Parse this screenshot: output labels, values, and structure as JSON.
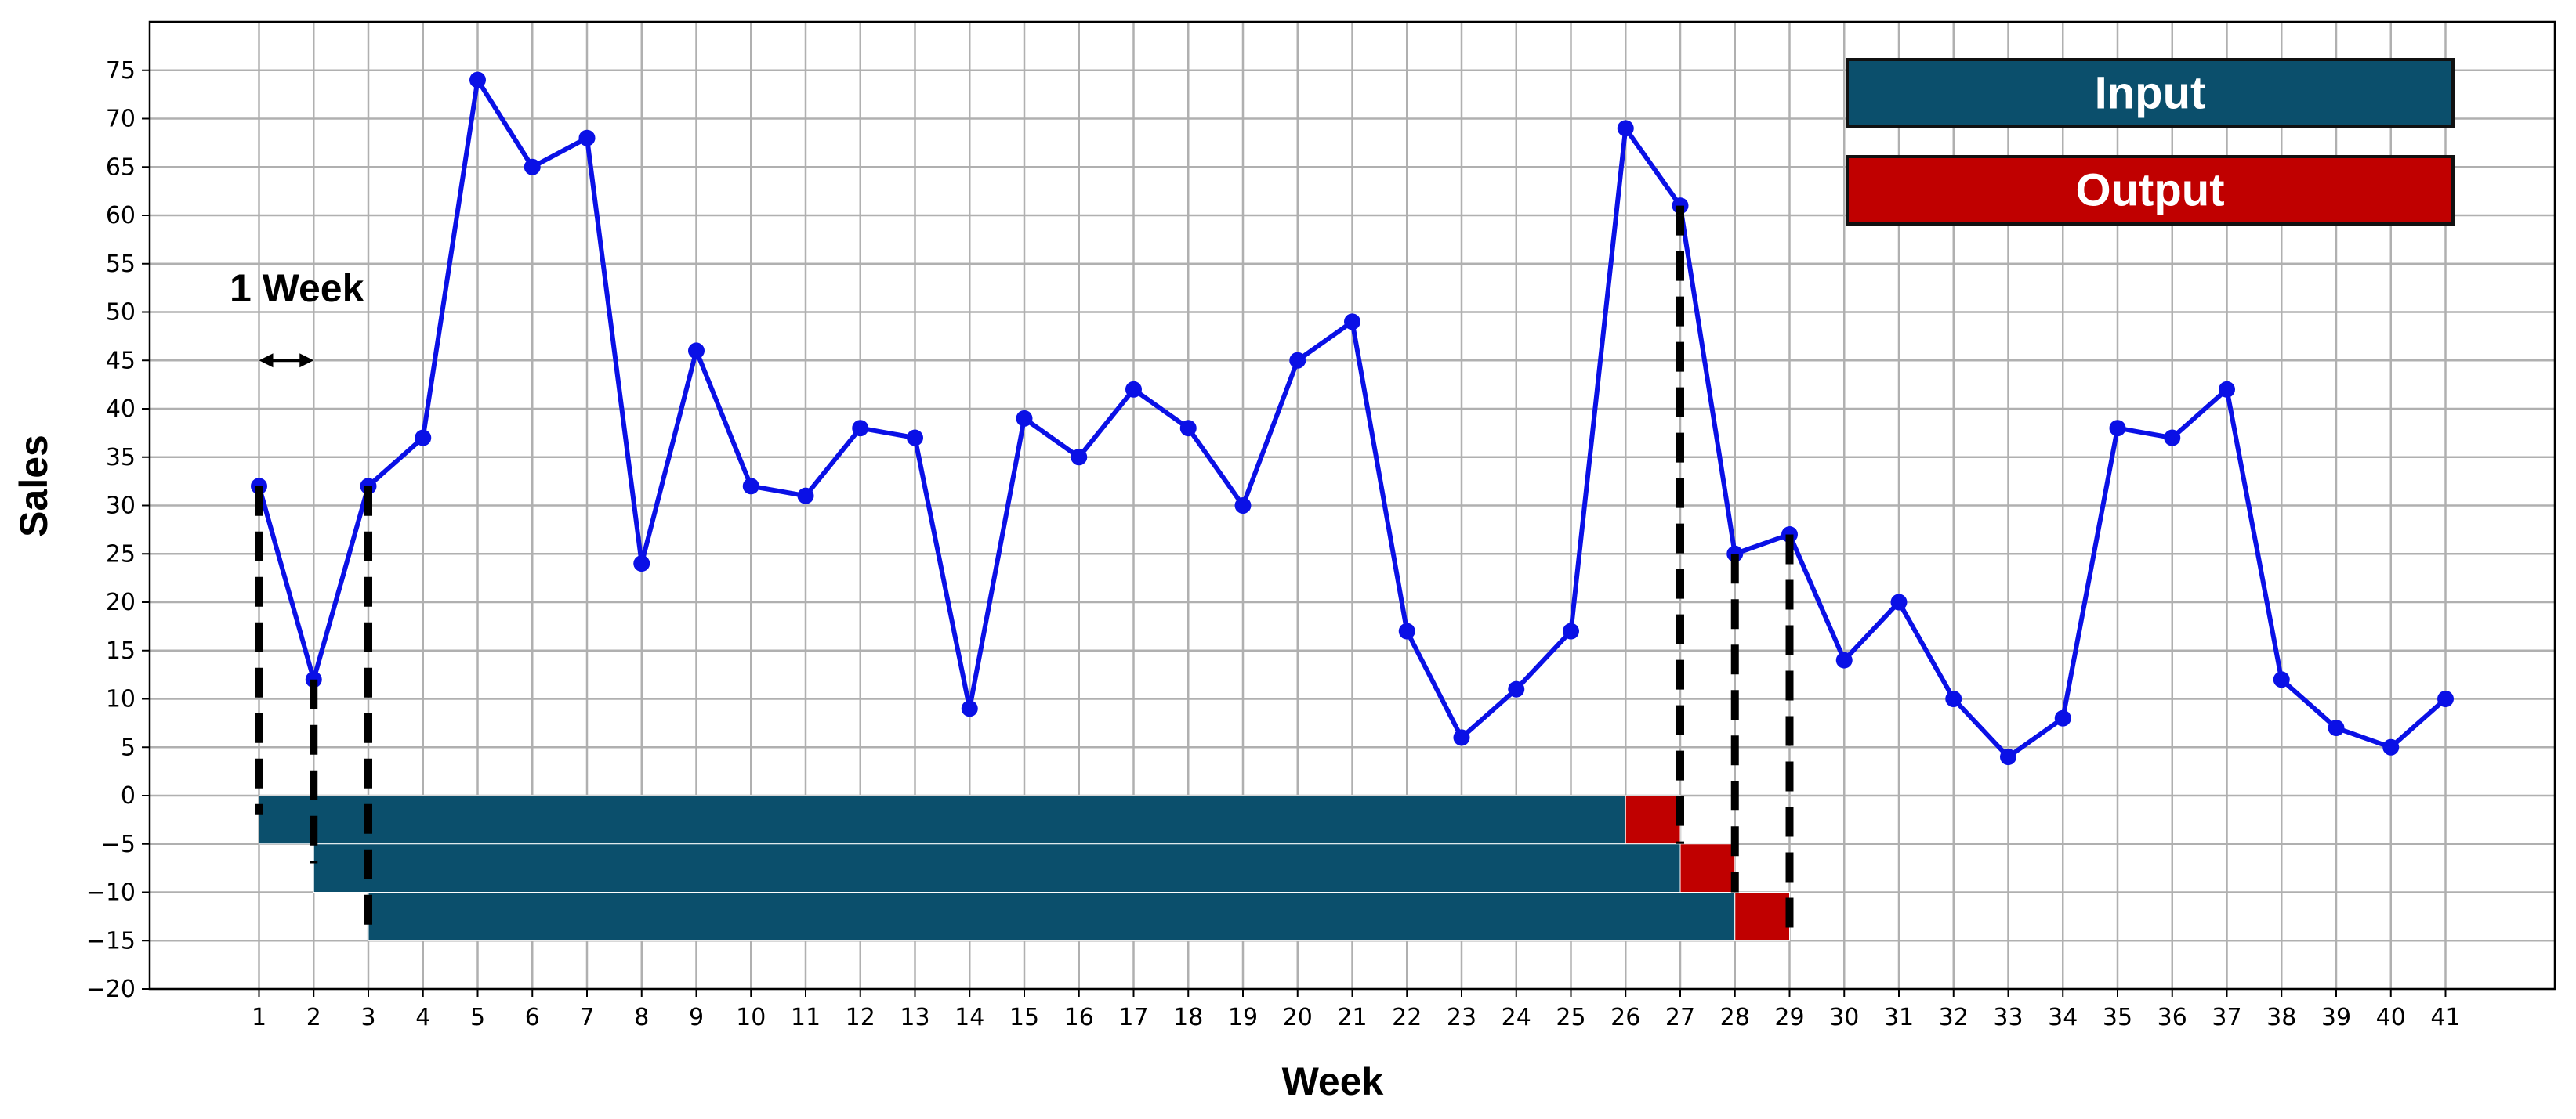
{
  "chart_data": {
    "type": "line",
    "xlabel": "Week",
    "ylabel": "Sales",
    "xlim": [
      -1,
      43
    ],
    "ylim": [
      -20,
      80
    ],
    "xticks": [
      1,
      2,
      3,
      4,
      5,
      6,
      7,
      8,
      9,
      10,
      11,
      12,
      13,
      14,
      15,
      16,
      17,
      18,
      19,
      20,
      21,
      22,
      23,
      24,
      25,
      26,
      27,
      28,
      29,
      30,
      31,
      32,
      33,
      34,
      35,
      36,
      37,
      38,
      39,
      40,
      41
    ],
    "yticks": [
      -20,
      -15,
      -10,
      -5,
      0,
      5,
      10,
      15,
      20,
      25,
      30,
      35,
      40,
      45,
      50,
      55,
      60,
      65,
      70,
      75
    ],
    "grid": true,
    "series": [
      {
        "x": [
          1,
          2,
          3,
          4,
          5,
          6,
          7,
          8,
          9,
          10,
          11,
          12,
          13,
          14,
          15,
          16,
          17,
          18,
          19,
          20,
          21,
          22,
          23,
          24,
          25,
          26,
          27,
          28,
          29,
          30,
          31,
          32,
          33,
          34,
          35,
          36,
          37,
          38,
          39,
          40,
          41
        ],
        "y": [
          32,
          12,
          32,
          37,
          74,
          65,
          68,
          24,
          46,
          32,
          31,
          38,
          37,
          9,
          39,
          35,
          42,
          38,
          30,
          45,
          49,
          17,
          6,
          11,
          17,
          69,
          61,
          25,
          27,
          14,
          20,
          10,
          4,
          8,
          38,
          37,
          42,
          12,
          7,
          5,
          10
        ],
        "color": "#0a10e6"
      }
    ],
    "windows": [
      {
        "input_start": 1,
        "input_end": 26,
        "output_start": 26,
        "output_end": 27,
        "y_top": 0,
        "y_bottom": -5
      },
      {
        "input_start": 2,
        "input_end": 27,
        "output_start": 27,
        "output_end": 28,
        "y_top": -5,
        "y_bottom": -10
      },
      {
        "input_start": 3,
        "input_end": 28,
        "output_start": 28,
        "output_end": 29,
        "y_top": -10,
        "y_bottom": -15
      }
    ],
    "dashed_guides": [
      1,
      2,
      3,
      27,
      28,
      29
    ],
    "legend": {
      "placement": "top-right",
      "entries": [
        {
          "label": "Input",
          "color": "#0b4f6c"
        },
        {
          "label": "Output",
          "color": "#c00000"
        }
      ]
    },
    "annotation": {
      "text": "1 Week",
      "arrow_from": 1,
      "arrow_to": 2,
      "arrow_y": 45
    },
    "colors": {
      "input": "#0b4f6c",
      "output": "#c00000",
      "line": "#0a10e6",
      "grid": "#b0b0b0"
    }
  }
}
